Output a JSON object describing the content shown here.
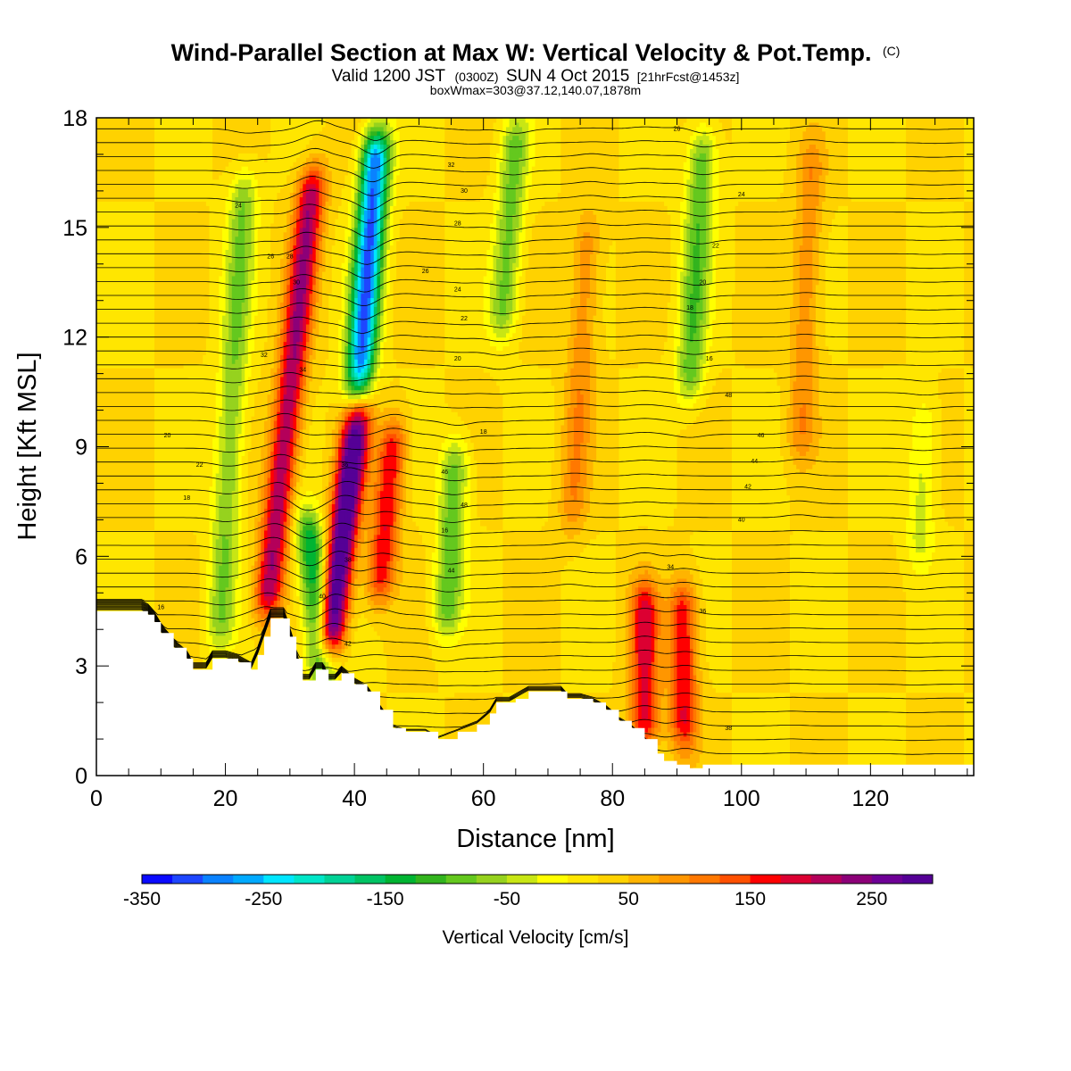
{
  "title": {
    "main": "Wind-Parallel Section at Max W: Vertical Velocity & Pot.Temp.",
    "copyright": "(C)",
    "valid_prefix": "Valid 1200 JST",
    "zulu": "(0300Z)",
    "valid_date": "SUN 4 Oct 2015",
    "forecast": "[21hrFcst@1453z]",
    "box_info": "boxWmax=303@37.12,140.07,1878m"
  },
  "chart_data": {
    "type": "heatmap",
    "xlabel": "Distance [nm]",
    "ylabel": "Height [Kft MSL]",
    "xlim": [
      0,
      136
    ],
    "ylim": [
      0,
      18
    ],
    "x_ticks": [
      0,
      20,
      40,
      60,
      80,
      100,
      120
    ],
    "y_ticks": [
      0,
      3,
      6,
      9,
      12,
      15,
      18
    ],
    "x_minor_step": 5,
    "y_minor_step": 1,
    "colorbar": {
      "title": "Vertical Velocity [cm/s]",
      "min": -350,
      "max": 300,
      "step": 25,
      "tick_labels": [
        -350,
        -250,
        -150,
        -50,
        50,
        150,
        250
      ],
      "colors": [
        "#0a0aff",
        "#1e46ff",
        "#0a82ff",
        "#00aaff",
        "#00e6ff",
        "#00e6c8",
        "#00d296",
        "#00c364",
        "#00b432",
        "#32b41e",
        "#64c81e",
        "#96d21e",
        "#c8e614",
        "#ffff00",
        "#ffe600",
        "#ffd200",
        "#ffb400",
        "#ff9600",
        "#ff7800",
        "#ff5000",
        "#ff0000",
        "#dc0032",
        "#b4005a",
        "#8c0078",
        "#6e0096",
        "#550096"
      ]
    },
    "velocity_features": [
      {
        "x": 21,
        "z_min": 2,
        "z_max": 18,
        "peak": -100,
        "lean": 0.3
      },
      {
        "x": 30,
        "z_min": 3,
        "z_max": 18,
        "peak": 200,
        "lean": 0.6
      },
      {
        "x": 34,
        "z_min": 2.5,
        "z_max": 7,
        "peak": -180,
        "lean": -0.5
      },
      {
        "x": 38.5,
        "z_min": 3,
        "z_max": 11,
        "peak": 300,
        "lean": 0.7
      },
      {
        "x": 42,
        "z_min": 9.5,
        "z_max": 18,
        "peak": -330,
        "lean": 0.4
      },
      {
        "x": 45,
        "z_min": 5,
        "z_max": 9.5,
        "peak": 150,
        "lean": 0.5
      },
      {
        "x": 55,
        "z_min": 4,
        "z_max": 9,
        "peak": -120,
        "lean": 0.3
      },
      {
        "x": 64,
        "z_min": 12,
        "z_max": 18,
        "peak": -110,
        "lean": 0.4
      },
      {
        "x": 93,
        "z_min": 10,
        "z_max": 18,
        "peak": -120,
        "lean": 0.3
      },
      {
        "x": 85,
        "z_min": 1,
        "z_max": 5,
        "peak": 160,
        "lean": 0.0
      },
      {
        "x": 91,
        "z_min": 1,
        "z_max": 5,
        "peak": 150,
        "lean": 0.0
      },
      {
        "x": 75,
        "z_min": 6,
        "z_max": 16,
        "peak": 70,
        "lean": 0.3
      },
      {
        "x": 110,
        "z_min": 8,
        "z_max": 18,
        "peak": 70,
        "lean": 0.2
      },
      {
        "x": 128,
        "z_min": 6,
        "z_max": 10,
        "peak": -60,
        "lean": 0.2
      }
    ],
    "terrain_kft": [
      [
        0,
        4.5
      ],
      [
        7,
        4.5
      ],
      [
        8,
        4.4
      ],
      [
        9,
        4.2
      ],
      [
        10,
        3.9
      ],
      [
        12,
        3.5
      ],
      [
        14,
        3.2
      ],
      [
        15,
        2.9
      ],
      [
        17,
        2.9
      ],
      [
        18,
        3.2
      ],
      [
        20,
        3.2
      ],
      [
        22,
        3.1
      ],
      [
        24,
        2.9
      ],
      [
        25,
        3.3
      ],
      [
        26,
        3.8
      ],
      [
        27,
        4.3
      ],
      [
        29,
        4.3
      ],
      [
        30,
        3.8
      ],
      [
        31,
        3.2
      ],
      [
        32,
        2.6
      ],
      [
        33,
        2.6
      ],
      [
        34,
        2.9
      ],
      [
        35,
        2.9
      ],
      [
        36,
        2.6
      ],
      [
        37,
        2.6
      ],
      [
        38,
        2.8
      ],
      [
        40,
        2.5
      ],
      [
        42,
        2.3
      ],
      [
        44,
        1.8
      ],
      [
        46,
        1.3
      ],
      [
        48,
        1.2
      ],
      [
        51,
        1.2
      ],
      [
        53,
        1.0
      ],
      [
        56,
        1.2
      ],
      [
        59,
        1.4
      ],
      [
        61,
        1.7
      ],
      [
        62,
        2.0
      ],
      [
        64,
        2.0
      ],
      [
        65,
        2.1
      ],
      [
        67,
        2.3
      ],
      [
        70,
        2.3
      ],
      [
        72,
        2.3
      ],
      [
        73,
        2.1
      ],
      [
        75,
        2.1
      ],
      [
        77,
        2.0
      ],
      [
        79,
        1.8
      ],
      [
        81,
        1.5
      ],
      [
        83,
        1.3
      ],
      [
        85,
        1.0
      ],
      [
        87,
        0.6
      ],
      [
        88,
        0.4
      ],
      [
        90,
        0.3
      ],
      [
        92,
        0.2
      ],
      [
        94,
        0.3
      ],
      [
        100,
        0.3
      ],
      [
        136,
        0.3
      ]
    ],
    "potential_temperature": {
      "units": "°C",
      "label_values": [
        16,
        18,
        20,
        22,
        24,
        26,
        28,
        30,
        32,
        34,
        36,
        38,
        40,
        42,
        44,
        46,
        48
      ]
    }
  }
}
